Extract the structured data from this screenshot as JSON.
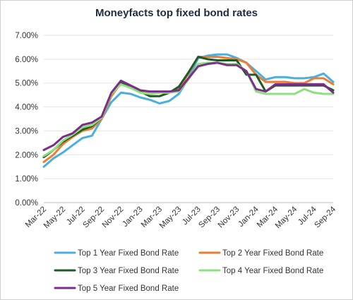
{
  "chart_data": {
    "type": "line",
    "title": "Moneyfacts top fixed bond rates",
    "x_tick_labels": [
      "Mar-22",
      "May-22",
      "Jul-22",
      "Sep-22",
      "Nov-22",
      "Jan-23",
      "Mar-23",
      "May-23",
      "Jul-23",
      "Sep-23",
      "Nov-23",
      "Jan-24",
      "Mar-24",
      "May-24",
      "Jul-24",
      "Sep-24"
    ],
    "x": [
      "Mar-22",
      "Apr-22",
      "May-22",
      "Jun-22",
      "Jul-22",
      "Aug-22",
      "Sep-22",
      "Oct-22",
      "Nov-22",
      "Dec-22",
      "Jan-23",
      "Feb-23",
      "Mar-23",
      "Apr-23",
      "May-23",
      "Jun-23",
      "Jul-23",
      "Aug-23",
      "Sep-23",
      "Oct-23",
      "Nov-23",
      "Dec-23",
      "Jan-24",
      "Feb-24",
      "Mar-24",
      "Apr-24",
      "May-24",
      "Jun-24",
      "Jul-24",
      "Aug-24",
      "Sep-24"
    ],
    "y_tick_labels": [
      "0.00%",
      "1.00%",
      "2.00%",
      "3.00%",
      "4.00%",
      "5.00%",
      "6.00%",
      "7.00%"
    ],
    "ylim": [
      0,
      7
    ],
    "grid": "horizontal",
    "legend_position": "bottom",
    "series": [
      {
        "name": "Top 1 Year Fixed Bond Rate",
        "color": "#4aaee0",
        "values": [
          1.5,
          1.85,
          2.1,
          2.4,
          2.7,
          2.8,
          3.5,
          4.2,
          4.6,
          4.55,
          4.4,
          4.3,
          4.15,
          4.25,
          4.55,
          5.2,
          6.05,
          6.15,
          6.2,
          6.2,
          6.05,
          5.85,
          5.5,
          5.15,
          5.25,
          5.25,
          5.2,
          5.2,
          5.25,
          5.4,
          5.05
        ]
      },
      {
        "name": "Top 2 Year Fixed Bond Rate",
        "color": "#ee7d31",
        "values": [
          1.7,
          2.0,
          2.45,
          2.75,
          3.0,
          3.1,
          3.5,
          4.45,
          5.0,
          4.9,
          4.7,
          4.55,
          4.6,
          4.6,
          4.75,
          5.4,
          6.1,
          6.1,
          6.1,
          6.05,
          6.0,
          5.85,
          5.35,
          5.05,
          5.05,
          5.05,
          5.0,
          5.0,
          5.2,
          5.2,
          4.95
        ]
      },
      {
        "name": "Top 3 Year Fixed Bond Rate",
        "color": "#1d5c27",
        "values": [
          1.9,
          2.2,
          2.55,
          2.8,
          3.05,
          3.2,
          3.55,
          4.55,
          5.0,
          4.85,
          4.65,
          4.45,
          4.45,
          4.6,
          4.85,
          5.45,
          6.1,
          6.0,
          5.95,
          5.95,
          5.95,
          5.35,
          5.35,
          4.65,
          4.9,
          4.9,
          4.9,
          4.9,
          4.9,
          4.9,
          4.7
        ]
      },
      {
        "name": "Top 4 Year Fixed Bond Rate",
        "color": "#8ee07f",
        "values": [
          1.95,
          2.2,
          2.6,
          2.85,
          3.15,
          3.25,
          3.55,
          4.55,
          4.95,
          4.8,
          4.6,
          4.55,
          4.6,
          4.6,
          4.65,
          5.15,
          5.8,
          5.85,
          5.85,
          5.8,
          5.8,
          5.5,
          4.65,
          4.55,
          4.55,
          4.55,
          4.55,
          4.75,
          4.6,
          4.55,
          4.55
        ]
      },
      {
        "name": "Top 5 Year Fixed Bond Rate",
        "color": "#7b2d8b",
        "values": [
          2.2,
          2.4,
          2.75,
          2.9,
          3.25,
          3.35,
          3.6,
          4.6,
          5.1,
          4.9,
          4.7,
          4.65,
          4.65,
          4.65,
          4.7,
          5.2,
          5.7,
          5.8,
          5.85,
          5.75,
          5.75,
          5.5,
          4.75,
          4.65,
          4.95,
          4.95,
          4.95,
          4.95,
          4.95,
          4.95,
          4.6
        ]
      }
    ]
  }
}
